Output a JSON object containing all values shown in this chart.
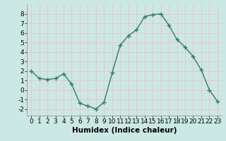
{
  "x": [
    0,
    1,
    2,
    3,
    4,
    5,
    6,
    7,
    8,
    9,
    10,
    11,
    12,
    13,
    14,
    15,
    16,
    17,
    18,
    19,
    20,
    21,
    22,
    23
  ],
  "y": [
    2.0,
    1.2,
    1.1,
    1.2,
    1.7,
    0.6,
    -1.4,
    -1.7,
    -2.0,
    -1.3,
    1.8,
    4.7,
    5.7,
    6.3,
    7.7,
    7.9,
    8.0,
    6.8,
    5.3,
    4.5,
    3.5,
    2.1,
    0.0,
    -1.2
  ],
  "line_color": "#2e7d6e",
  "marker": "+",
  "marker_color": "#2e7d6e",
  "bg_color": "#cce8e4",
  "grid_color": "#e8c8c8",
  "xlabel": "Humidex (Indice chaleur)",
  "xlim": [
    -0.5,
    23.5
  ],
  "ylim": [
    -2.7,
    9.0
  ],
  "yticks": [
    -2,
    -1,
    0,
    1,
    2,
    3,
    4,
    5,
    6,
    7,
    8
  ],
  "xticks": [
    0,
    1,
    2,
    3,
    4,
    5,
    6,
    7,
    8,
    9,
    10,
    11,
    12,
    13,
    14,
    15,
    16,
    17,
    18,
    19,
    20,
    21,
    22,
    23
  ],
  "tick_label_fontsize": 6.5,
  "xlabel_fontsize": 7.5,
  "line_width": 1.0,
  "marker_size": 4.5
}
